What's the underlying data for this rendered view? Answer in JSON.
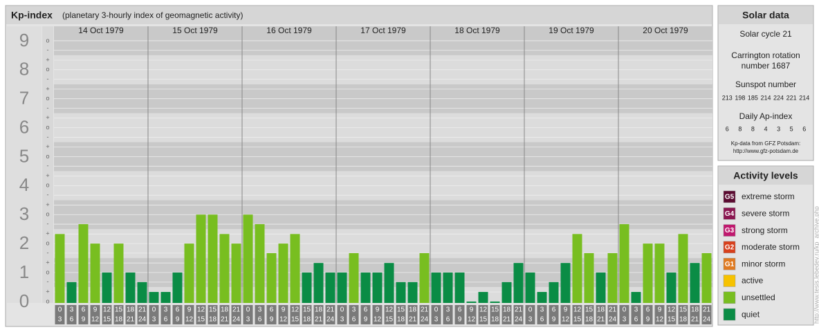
{
  "chart_data": {
    "type": "bar",
    "title": "Kp-index",
    "subtitle": "(planetary 3-hourly index of geomagnetic activity)",
    "ylim": [
      -0.05,
      9.5
    ],
    "yticks": [
      0,
      1,
      2,
      3,
      4,
      5,
      6,
      7,
      8,
      9
    ],
    "minor_ticks": [
      {
        "value": 0,
        "label": "o"
      },
      {
        "value": 0.33,
        "label": "+"
      },
      {
        "value": 0.67,
        "label": "-"
      },
      {
        "value": 1,
        "label": "o"
      },
      {
        "value": 1.33,
        "label": "+"
      },
      {
        "value": 1.67,
        "label": "-"
      },
      {
        "value": 2,
        "label": "o"
      },
      {
        "value": 2.33,
        "label": "+"
      },
      {
        "value": 2.67,
        "label": "-"
      },
      {
        "value": 3,
        "label": "o"
      },
      {
        "value": 3.33,
        "label": "+"
      },
      {
        "value": 3.67,
        "label": "-"
      },
      {
        "value": 4,
        "label": "o"
      },
      {
        "value": 4.33,
        "label": "+"
      },
      {
        "value": 4.67,
        "label": "-"
      },
      {
        "value": 5,
        "label": "o"
      },
      {
        "value": 5.33,
        "label": "+"
      },
      {
        "value": 5.67,
        "label": "-"
      },
      {
        "value": 6,
        "label": "o"
      },
      {
        "value": 6.33,
        "label": "+"
      },
      {
        "value": 6.67,
        "label": "-"
      },
      {
        "value": 7,
        "label": "o"
      },
      {
        "value": 7.33,
        "label": "+"
      },
      {
        "value": 7.67,
        "label": "-"
      },
      {
        "value": 8,
        "label": "o"
      },
      {
        "value": 8.33,
        "label": "+"
      },
      {
        "value": 8.67,
        "label": "-"
      },
      {
        "value": 9,
        "label": "o"
      }
    ],
    "time_bins": [
      {
        "start": "0",
        "end": "3"
      },
      {
        "start": "3",
        "end": "6"
      },
      {
        "start": "6",
        "end": "9"
      },
      {
        "start": "9",
        "end": "12"
      },
      {
        "start": "12",
        "end": "15"
      },
      {
        "start": "15",
        "end": "18"
      },
      {
        "start": "18",
        "end": "21"
      },
      {
        "start": "21",
        "end": "24"
      }
    ],
    "days": [
      {
        "label": "14 Oct 1979",
        "values": [
          2.33,
          0.67,
          2.67,
          2,
          1,
          2,
          1,
          0.67
        ],
        "colors": [
          "#78be20",
          "#0a8c45",
          "#78be20",
          "#78be20",
          "#0a8c45",
          "#78be20",
          "#0a8c45",
          "#0a8c45"
        ]
      },
      {
        "label": "15 Oct 1979",
        "values": [
          0.33,
          0.33,
          1,
          2,
          3,
          3,
          2.33,
          2
        ],
        "colors": [
          "#0a8c45",
          "#0a8c45",
          "#0a8c45",
          "#78be20",
          "#78be20",
          "#78be20",
          "#78be20",
          "#78be20"
        ]
      },
      {
        "label": "16 Oct 1979",
        "values": [
          3,
          2.67,
          1.67,
          2,
          2.33,
          1,
          1.33,
          1
        ],
        "colors": [
          "#78be20",
          "#78be20",
          "#78be20",
          "#78be20",
          "#78be20",
          "#0a8c45",
          "#0a8c45",
          "#0a8c45"
        ]
      },
      {
        "label": "17 Oct 1979",
        "values": [
          1,
          1.67,
          1,
          1,
          1.33,
          0.67,
          0.67,
          1.67
        ],
        "colors": [
          "#0a8c45",
          "#78be20",
          "#0a8c45",
          "#0a8c45",
          "#0a8c45",
          "#0a8c45",
          "#0a8c45",
          "#78be20"
        ]
      },
      {
        "label": "18 Oct 1979",
        "values": [
          1,
          1,
          1,
          0,
          0.33,
          0,
          0.67,
          1.33
        ],
        "colors": [
          "#0a8c45",
          "#0a8c45",
          "#0a8c45",
          "#0a8c45",
          "#0a8c45",
          "#0a8c45",
          "#0a8c45",
          "#0a8c45"
        ]
      },
      {
        "label": "19 Oct 1979",
        "values": [
          1,
          0.33,
          0.67,
          1.33,
          2.33,
          1.67,
          1,
          1.67
        ],
        "colors": [
          "#0a8c45",
          "#0a8c45",
          "#0a8c45",
          "#0a8c45",
          "#78be20",
          "#78be20",
          "#0a8c45",
          "#78be20"
        ]
      },
      {
        "label": "20 Oct 1979",
        "values": [
          2.67,
          0.33,
          2,
          2,
          1,
          2.33,
          1.33,
          1.67
        ],
        "colors": [
          "#78be20",
          "#0a8c45",
          "#78be20",
          "#78be20",
          "#0a8c45",
          "#78be20",
          "#0a8c45",
          "#78be20"
        ]
      }
    ]
  },
  "solar": {
    "title": "Solar data",
    "cycle": "Solar cycle 21",
    "carrington": [
      "Carrington rotation",
      "number 1687"
    ],
    "sunspot_title": "Sunspot number",
    "sunspots": [
      "213",
      "198",
      "185",
      "214",
      "224",
      "221",
      "214"
    ],
    "ap_title": "Daily Ap-index",
    "ap": [
      "6",
      "8",
      "8",
      "4",
      "3",
      "5",
      "6"
    ],
    "source": "Kp-data from GFZ Potsdam:",
    "source_url": "http://www.gfz-potsdam.de"
  },
  "activity": {
    "title": "Activity levels",
    "levels": [
      {
        "badge": "G5",
        "name": "extreme storm",
        "color": "#5a0a30"
      },
      {
        "badge": "G4",
        "name": "severe storm",
        "color": "#8a1650"
      },
      {
        "badge": "G3",
        "name": "strong storm",
        "color": "#c0186e"
      },
      {
        "badge": "G2",
        "name": "moderate storm",
        "color": "#d8401c"
      },
      {
        "badge": "G1",
        "name": "minor storm",
        "color": "#e07a20"
      },
      {
        "name": "active",
        "color": "#f6c200"
      },
      {
        "name": "unsettled",
        "color": "#78be20"
      },
      {
        "name": "quiet",
        "color": "#0a8c45"
      }
    ]
  },
  "side_url": "http://www.tesis.lebedev.ru/kp_archive.php"
}
